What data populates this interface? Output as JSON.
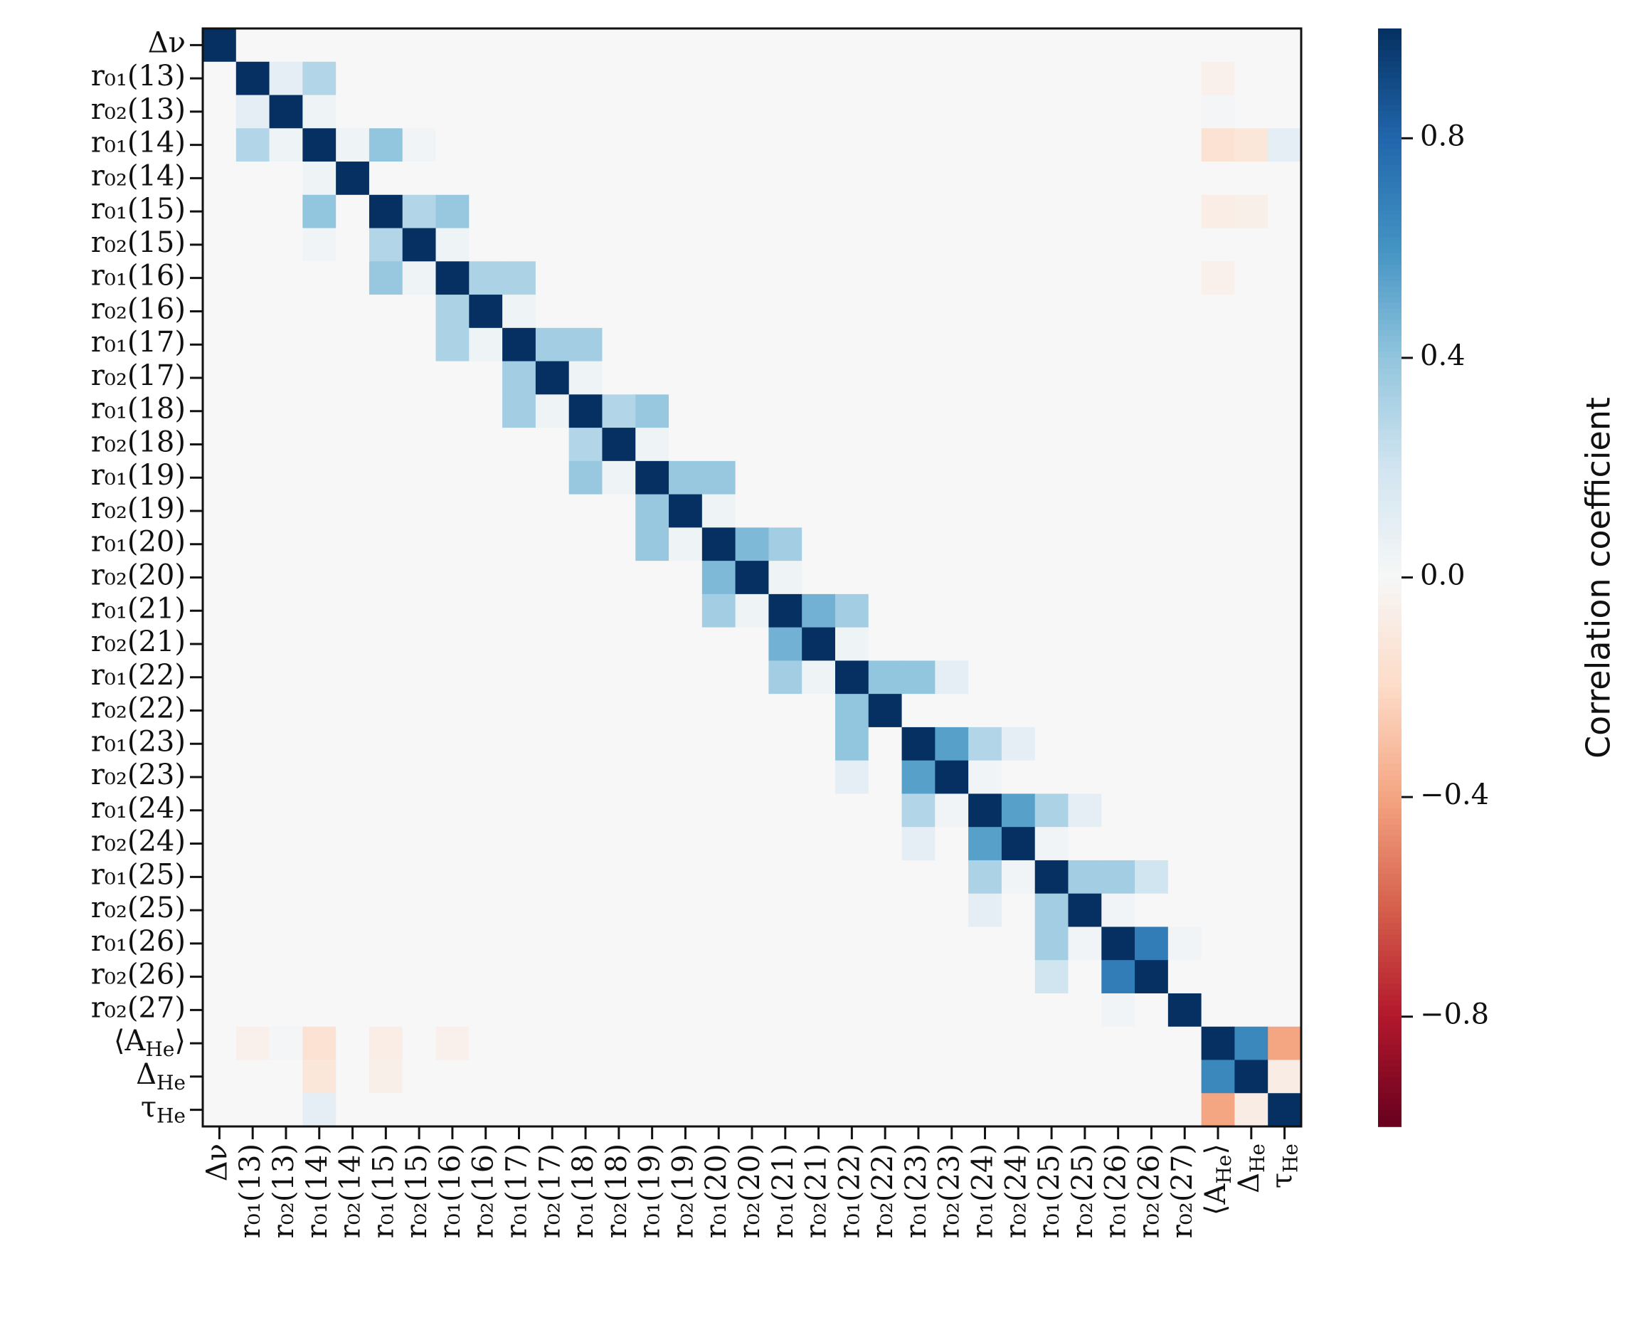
{
  "chart_data": {
    "type": "heatmap",
    "categories": [
      "Δν",
      "r₀₁(13)",
      "r₀₂(13)",
      "r₀₁(14)",
      "r₀₂(14)",
      "r₀₁(15)",
      "r₀₂(15)",
      "r₀₁(16)",
      "r₀₂(16)",
      "r₀₁(17)",
      "r₀₂(17)",
      "r₀₁(18)",
      "r₀₂(18)",
      "r₀₁(19)",
      "r₀₂(19)",
      "r₀₁(20)",
      "r₀₂(20)",
      "r₀₁(21)",
      "r₀₂(21)",
      "r₀₁(22)",
      "r₀₂(22)",
      "r₀₁(23)",
      "r₀₂(23)",
      "r₀₁(24)",
      "r₀₂(24)",
      "r₀₁(25)",
      "r₀₂(25)",
      "r₀₁(26)",
      "r₀₂(26)",
      "r₀₂(27)",
      "⟨A_He⟩",
      "Δ_He",
      "τ_He"
    ],
    "values": [
      [
        1,
        0,
        0,
        0,
        0,
        0,
        0,
        0,
        0,
        0,
        0,
        0,
        0,
        0,
        0,
        0,
        0,
        0,
        0,
        0,
        0,
        0,
        0,
        0,
        0,
        0,
        0,
        0,
        0,
        0,
        0,
        0,
        0
      ],
      [
        0,
        1,
        0.1,
        0.3,
        0,
        0,
        0,
        0,
        0,
        0,
        0,
        0,
        0,
        0,
        0,
        0,
        0,
        0,
        0,
        0,
        0,
        0,
        0,
        0,
        0,
        0,
        0,
        0,
        0,
        0,
        -0.05,
        0,
        0
      ],
      [
        0,
        0.1,
        1,
        0.05,
        0,
        0,
        0,
        0,
        0,
        0,
        0,
        0,
        0,
        0,
        0,
        0,
        0,
        0,
        0,
        0,
        0,
        0,
        0,
        0,
        0,
        0,
        0,
        0,
        0,
        0,
        0.02,
        0,
        0
      ],
      [
        0,
        0.3,
        0.05,
        1,
        0.05,
        0.4,
        0.03,
        0,
        0,
        0,
        0,
        0,
        0,
        0,
        0,
        0,
        0,
        0,
        0,
        0,
        0,
        0,
        0,
        0,
        0,
        0,
        0,
        0,
        0,
        0,
        -0.15,
        -0.12,
        0.1
      ],
      [
        0,
        0,
        0,
        0.05,
        1,
        0,
        0,
        0,
        0,
        0,
        0,
        0,
        0,
        0,
        0,
        0,
        0,
        0,
        0,
        0,
        0,
        0,
        0,
        0,
        0,
        0,
        0,
        0,
        0,
        0,
        0,
        0,
        0
      ],
      [
        0,
        0,
        0,
        0.4,
        0,
        1,
        0.3,
        0.38,
        0,
        0,
        0,
        0,
        0,
        0,
        0,
        0,
        0,
        0,
        0,
        0,
        0,
        0,
        0,
        0,
        0,
        0,
        0,
        0,
        0,
        0,
        -0.07,
        -0.06,
        0
      ],
      [
        0,
        0,
        0,
        0.03,
        0,
        0.3,
        1,
        0.05,
        0,
        0,
        0,
        0,
        0,
        0,
        0,
        0,
        0,
        0,
        0,
        0,
        0,
        0,
        0,
        0,
        0,
        0,
        0,
        0,
        0,
        0,
        0,
        0,
        0
      ],
      [
        0,
        0,
        0,
        0,
        0,
        0.38,
        0.05,
        1,
        0.32,
        0.32,
        0,
        0,
        0,
        0,
        0,
        0,
        0,
        0,
        0,
        0,
        0,
        0,
        0,
        0,
        0,
        0,
        0,
        0,
        0,
        0,
        -0.05,
        0,
        0
      ],
      [
        0,
        0,
        0,
        0,
        0,
        0,
        0,
        0.32,
        1,
        0.05,
        0,
        0,
        0,
        0,
        0,
        0,
        0,
        0,
        0,
        0,
        0,
        0,
        0,
        0,
        0,
        0,
        0,
        0,
        0,
        0,
        0,
        0,
        0
      ],
      [
        0,
        0,
        0,
        0,
        0,
        0,
        0,
        0.32,
        0.05,
        1,
        0.35,
        0.35,
        0,
        0,
        0,
        0,
        0,
        0,
        0,
        0,
        0,
        0,
        0,
        0,
        0,
        0,
        0,
        0,
        0,
        0,
        0,
        0,
        0
      ],
      [
        0,
        0,
        0,
        0,
        0,
        0,
        0,
        0,
        0,
        0.35,
        1,
        0.05,
        0,
        0,
        0,
        0,
        0,
        0,
        0,
        0,
        0,
        0,
        0,
        0,
        0,
        0,
        0,
        0,
        0,
        0,
        0,
        0,
        0
      ],
      [
        0,
        0,
        0,
        0,
        0,
        0,
        0,
        0,
        0,
        0.35,
        0.05,
        1,
        0.3,
        0.38,
        0,
        0,
        0,
        0,
        0,
        0,
        0,
        0,
        0,
        0,
        0,
        0,
        0,
        0,
        0,
        0,
        0,
        0,
        0
      ],
      [
        0,
        0,
        0,
        0,
        0,
        0,
        0,
        0,
        0,
        0,
        0,
        0.3,
        1,
        0.05,
        0,
        0,
        0,
        0,
        0,
        0,
        0,
        0,
        0,
        0,
        0,
        0,
        0,
        0,
        0,
        0,
        0,
        0,
        0
      ],
      [
        0,
        0,
        0,
        0,
        0,
        0,
        0,
        0,
        0,
        0,
        0,
        0.38,
        0.05,
        1,
        0.38,
        0.38,
        0,
        0,
        0,
        0,
        0,
        0,
        0,
        0,
        0,
        0,
        0,
        0,
        0,
        0,
        0,
        0,
        0
      ],
      [
        0,
        0,
        0,
        0,
        0,
        0,
        0,
        0,
        0,
        0,
        0,
        0,
        0,
        0.38,
        1,
        0.05,
        0,
        0,
        0,
        0,
        0,
        0,
        0,
        0,
        0,
        0,
        0,
        0,
        0,
        0,
        0,
        0,
        0
      ],
      [
        0,
        0,
        0,
        0,
        0,
        0,
        0,
        0,
        0,
        0,
        0,
        0,
        0,
        0.38,
        0.05,
        1,
        0.45,
        0.35,
        0,
        0,
        0,
        0,
        0,
        0,
        0,
        0,
        0,
        0,
        0,
        0,
        0,
        0,
        0
      ],
      [
        0,
        0,
        0,
        0,
        0,
        0,
        0,
        0,
        0,
        0,
        0,
        0,
        0,
        0,
        0,
        0.45,
        1,
        0.05,
        0,
        0,
        0,
        0,
        0,
        0,
        0,
        0,
        0,
        0,
        0,
        0,
        0,
        0,
        0
      ],
      [
        0,
        0,
        0,
        0,
        0,
        0,
        0,
        0,
        0,
        0,
        0,
        0,
        0,
        0,
        0,
        0.35,
        0.05,
        1,
        0.48,
        0.35,
        0,
        0,
        0,
        0,
        0,
        0,
        0,
        0,
        0,
        0,
        0,
        0,
        0
      ],
      [
        0,
        0,
        0,
        0,
        0,
        0,
        0,
        0,
        0,
        0,
        0,
        0,
        0,
        0,
        0,
        0,
        0,
        0.48,
        1,
        0.05,
        0,
        0,
        0,
        0,
        0,
        0,
        0,
        0,
        0,
        0,
        0,
        0,
        0
      ],
      [
        0,
        0,
        0,
        0,
        0,
        0,
        0,
        0,
        0,
        0,
        0,
        0,
        0,
        0,
        0,
        0,
        0,
        0.35,
        0.05,
        1,
        0.4,
        0.4,
        0.1,
        0,
        0,
        0,
        0,
        0,
        0,
        0,
        0,
        0,
        0
      ],
      [
        0,
        0,
        0,
        0,
        0,
        0,
        0,
        0,
        0,
        0,
        0,
        0,
        0,
        0,
        0,
        0,
        0,
        0,
        0,
        0.4,
        1,
        0,
        0,
        0,
        0,
        0,
        0,
        0,
        0,
        0,
        0,
        0,
        0
      ],
      [
        0,
        0,
        0,
        0,
        0,
        0,
        0,
        0,
        0,
        0,
        0,
        0,
        0,
        0,
        0,
        0,
        0,
        0,
        0,
        0.4,
        0,
        1,
        0.55,
        0.3,
        0.1,
        0,
        0,
        0,
        0,
        0,
        0,
        0,
        0
      ],
      [
        0,
        0,
        0,
        0,
        0,
        0,
        0,
        0,
        0,
        0,
        0,
        0,
        0,
        0,
        0,
        0,
        0,
        0,
        0,
        0.1,
        0,
        0.55,
        1,
        0.03,
        0,
        0,
        0,
        0,
        0,
        0,
        0,
        0,
        0
      ],
      [
        0,
        0,
        0,
        0,
        0,
        0,
        0,
        0,
        0,
        0,
        0,
        0,
        0,
        0,
        0,
        0,
        0,
        0,
        0,
        0,
        0,
        0.3,
        0.03,
        1,
        0.55,
        0.32,
        0.1,
        0,
        0,
        0,
        0,
        0,
        0
      ],
      [
        0,
        0,
        0,
        0,
        0,
        0,
        0,
        0,
        0,
        0,
        0,
        0,
        0,
        0,
        0,
        0,
        0,
        0,
        0,
        0,
        0,
        0.1,
        0,
        0.55,
        1,
        0.03,
        0,
        0,
        0,
        0,
        0,
        0,
        0
      ],
      [
        0,
        0,
        0,
        0,
        0,
        0,
        0,
        0,
        0,
        0,
        0,
        0,
        0,
        0,
        0,
        0,
        0,
        0,
        0,
        0,
        0,
        0,
        0,
        0.32,
        0.03,
        1,
        0.35,
        0.35,
        0.2,
        0,
        0,
        0,
        0
      ],
      [
        0,
        0,
        0,
        0,
        0,
        0,
        0,
        0,
        0,
        0,
        0,
        0,
        0,
        0,
        0,
        0,
        0,
        0,
        0,
        0,
        0,
        0,
        0,
        0.1,
        0,
        0.35,
        1,
        0.03,
        0,
        0,
        0,
        0,
        0
      ],
      [
        0,
        0,
        0,
        0,
        0,
        0,
        0,
        0,
        0,
        0,
        0,
        0,
        0,
        0,
        0,
        0,
        0,
        0,
        0,
        0,
        0,
        0,
        0,
        0,
        0,
        0.35,
        0.03,
        1,
        0.7,
        0.03,
        0,
        0,
        0
      ],
      [
        0,
        0,
        0,
        0,
        0,
        0,
        0,
        0,
        0,
        0,
        0,
        0,
        0,
        0,
        0,
        0,
        0,
        0,
        0,
        0,
        0,
        0,
        0,
        0,
        0,
        0.2,
        0,
        0.7,
        1,
        0,
        0,
        0,
        0
      ],
      [
        0,
        0,
        0,
        0,
        0,
        0,
        0,
        0,
        0,
        0,
        0,
        0,
        0,
        0,
        0,
        0,
        0,
        0,
        0,
        0,
        0,
        0,
        0,
        0,
        0,
        0,
        0,
        0.03,
        0,
        1,
        0,
        0,
        0
      ],
      [
        0,
        -0.05,
        0.02,
        -0.15,
        0,
        -0.07,
        0,
        -0.05,
        0,
        0,
        0,
        0,
        0,
        0,
        0,
        0,
        0,
        0,
        0,
        0,
        0,
        0,
        0,
        0,
        0,
        0,
        0,
        0,
        0,
        0,
        1,
        0.65,
        -0.4
      ],
      [
        0,
        0,
        0,
        -0.12,
        0,
        -0.06,
        0,
        0,
        0,
        0,
        0,
        0,
        0,
        0,
        0,
        0,
        0,
        0,
        0,
        0,
        0,
        0,
        0,
        0,
        0,
        0,
        0,
        0,
        0,
        0,
        0.65,
        1,
        -0.08
      ],
      [
        0,
        0,
        0,
        0.1,
        0,
        0,
        0,
        0,
        0,
        0,
        0,
        0,
        0,
        0,
        0,
        0,
        0,
        0,
        0,
        0,
        0,
        0,
        0,
        0,
        0,
        0,
        0,
        0,
        0,
        0,
        -0.4,
        -0.08,
        1
      ]
    ],
    "zlim": [
      -1,
      1
    ],
    "zticks": [
      {
        "value": -0.8,
        "label": "−0.8"
      },
      {
        "value": -0.4,
        "label": "−0.4"
      },
      {
        "value": 0,
        "label": "0.0"
      },
      0.4,
      0.8
    ],
    "zlabel": "Correlation coefficient",
    "colormap": [
      "#67001f",
      "#b2182b",
      "#d6604d",
      "#f4a582",
      "#fddbc7",
      "#f7f7f7",
      "#d1e5f0",
      "#92c5de",
      "#4393c3",
      "#2166ac",
      "#053061"
    ]
  }
}
